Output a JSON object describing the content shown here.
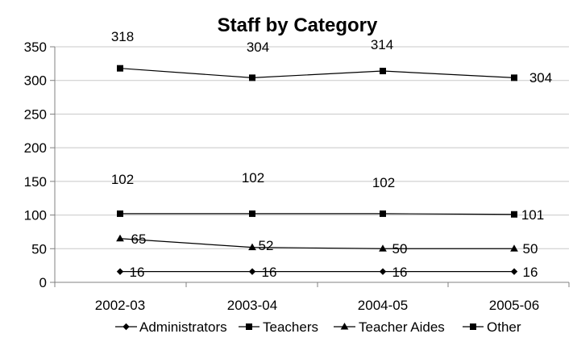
{
  "chart_data": {
    "type": "line",
    "title": "Staff by Category",
    "categories": [
      "2002-03",
      "2003-04",
      "2004-05",
      "2005-06"
    ],
    "ylim": [
      0,
      350
    ],
    "yticks": [
      0,
      50,
      100,
      150,
      200,
      250,
      300,
      350
    ],
    "grid": true,
    "legend_position": "bottom",
    "series": [
      {
        "name": "Administrators",
        "values": [
          16,
          16,
          16,
          16
        ],
        "labels": [
          "16",
          "16",
          "16",
          "16"
        ],
        "marker": "diamond",
        "color": "#000000"
      },
      {
        "name": "Teachers",
        "values": [
          318,
          304,
          314,
          304
        ],
        "labels": [
          "318",
          "304",
          "314",
          "304"
        ],
        "marker": "square",
        "color": "#000000"
      },
      {
        "name": "Teacher Aides",
        "values": [
          65,
          52,
          50,
          50
        ],
        "labels": [
          "65",
          "52",
          "50",
          "50"
        ],
        "marker": "triangle",
        "color": "#000000"
      },
      {
        "name": "Other",
        "values": [
          102,
          102,
          102,
          101
        ],
        "labels": [
          "102",
          "102",
          "102",
          "101"
        ],
        "marker": "square",
        "color": "#000000"
      }
    ]
  }
}
